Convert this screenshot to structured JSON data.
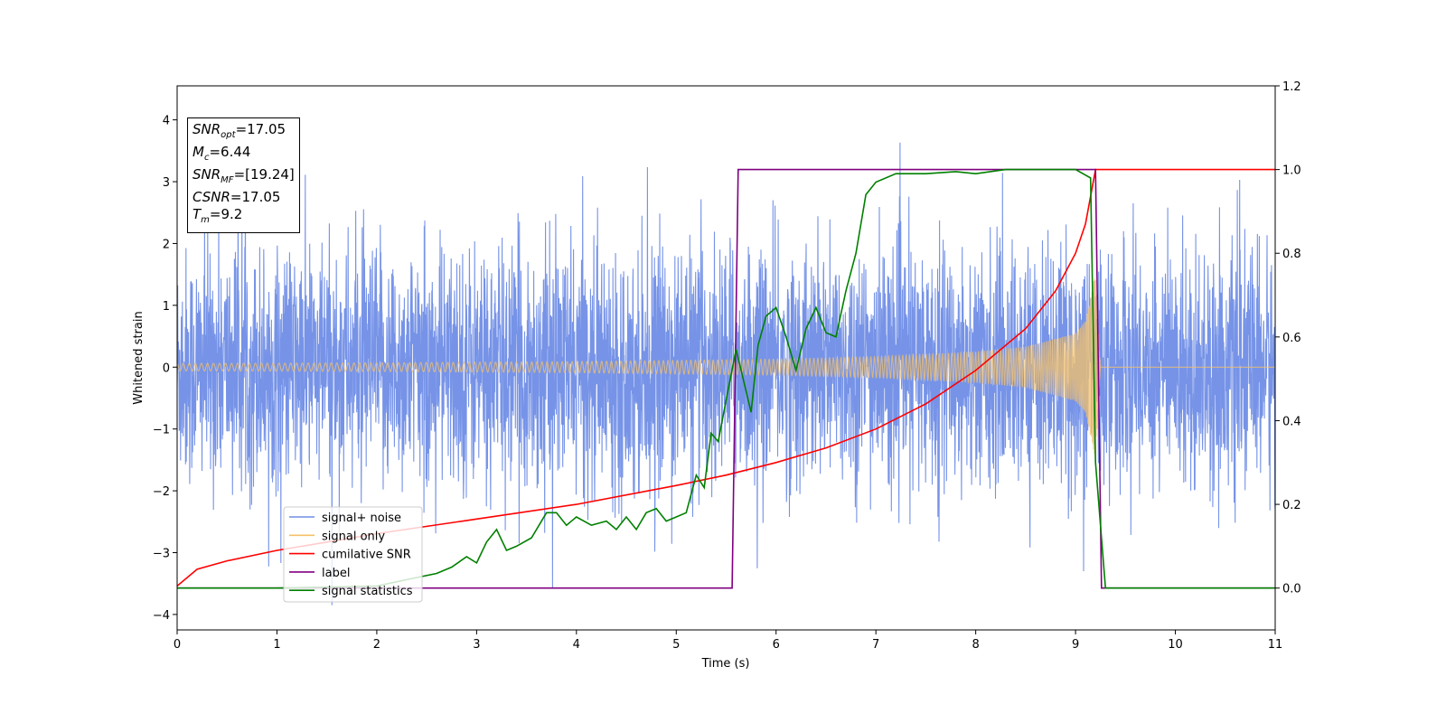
{
  "chart_data": {
    "type": "line",
    "xlabel": "Time (s)",
    "ylabel": "Whitened strain",
    "xlim": [
      0,
      11
    ],
    "ylim_left": [
      -4.25,
      4.55
    ],
    "ylim_right": [
      -0.1,
      1.2
    ],
    "xticks": [
      "0",
      "1",
      "2",
      "3",
      "4",
      "5",
      "6",
      "7",
      "8",
      "9",
      "10",
      "11"
    ],
    "yticks_left": [
      "−4",
      "−3",
      "−2",
      "−1",
      "0",
      "1",
      "2",
      "3",
      "4"
    ],
    "yticks_right": [
      "0.0",
      "0.2",
      "0.4",
      "0.6",
      "0.8",
      "1.0",
      "1.2"
    ],
    "legend_position": "lower-left",
    "legend": [
      {
        "label": "signal+ noise",
        "color": "#6f8de6"
      },
      {
        "label": "signal only",
        "color": "#f5c16a"
      },
      {
        "label": "cumilative SNR",
        "color": "#ff0000"
      },
      {
        "label": "label",
        "color": "#800080"
      },
      {
        "label": "signal statistics",
        "color": "#008000"
      }
    ],
    "series": [
      {
        "name": "signal+ noise",
        "axis": "left",
        "color": "#6f8de6",
        "description_values": {
          "x_range": [
            0,
            11
          ],
          "amplitude_typical": [
            -2.5,
            2.5
          ],
          "max": 4.15,
          "min": -3.85
        }
      },
      {
        "name": "signal only",
        "axis": "left",
        "color": "#f5c16a",
        "envelope": {
          "x": [
            0,
            2,
            4,
            6,
            7,
            8,
            8.5,
            9,
            9.1,
            9.2,
            9.25
          ],
          "amplitude": [
            0.06,
            0.07,
            0.09,
            0.13,
            0.17,
            0.25,
            0.33,
            0.55,
            0.75,
            1.5,
            0
          ]
        }
      },
      {
        "name": "cumilative SNR",
        "axis": "right",
        "color": "#ff0000",
        "x": [
          0,
          0.2,
          0.5,
          1,
          1.5,
          2,
          3,
          4,
          5,
          5.5,
          6,
          6.5,
          7,
          7.5,
          8,
          8.5,
          8.8,
          9.0,
          9.1,
          9.2,
          11
        ],
        "values": [
          0.005,
          0.045,
          0.065,
          0.09,
          0.11,
          0.13,
          0.165,
          0.2,
          0.245,
          0.27,
          0.3,
          0.335,
          0.38,
          0.44,
          0.52,
          0.62,
          0.71,
          0.8,
          0.87,
          1.0,
          1.0
        ]
      },
      {
        "name": "label",
        "axis": "right",
        "color": "#800080",
        "x": [
          0,
          5.56,
          5.62,
          9.2,
          9.26,
          11
        ],
        "values": [
          0,
          0,
          1,
          1,
          0,
          0
        ]
      },
      {
        "name": "signal statistics",
        "axis": "right",
        "color": "#008000",
        "x": [
          0,
          1,
          2,
          2.3,
          2.6,
          2.75,
          2.9,
          3.0,
          3.1,
          3.2,
          3.3,
          3.4,
          3.55,
          3.7,
          3.8,
          3.9,
          4.0,
          4.15,
          4.3,
          4.4,
          4.5,
          4.6,
          4.7,
          4.8,
          4.9,
          5.0,
          5.1,
          5.2,
          5.28,
          5.35,
          5.42,
          5.5,
          5.6,
          5.7,
          5.75,
          5.82,
          5.9,
          6.0,
          6.1,
          6.2,
          6.3,
          6.4,
          6.5,
          6.6,
          6.7,
          6.8,
          6.9,
          7.0,
          7.2,
          7.5,
          7.8,
          8.0,
          8.3,
          8.6,
          9.0,
          9.15,
          9.2,
          9.3,
          9.4,
          11
        ],
        "values": [
          0,
          0,
          0.005,
          0.02,
          0.035,
          0.05,
          0.075,
          0.06,
          0.11,
          0.14,
          0.09,
          0.1,
          0.12,
          0.18,
          0.18,
          0.15,
          0.17,
          0.15,
          0.16,
          0.14,
          0.17,
          0.14,
          0.18,
          0.19,
          0.16,
          0.17,
          0.18,
          0.27,
          0.24,
          0.37,
          0.35,
          0.45,
          0.57,
          0.47,
          0.42,
          0.58,
          0.65,
          0.67,
          0.6,
          0.52,
          0.62,
          0.67,
          0.61,
          0.6,
          0.71,
          0.8,
          0.94,
          0.97,
          0.99,
          0.99,
          0.995,
          0.99,
          1.0,
          1.0,
          1.0,
          0.98,
          0.3,
          0.0,
          0.0,
          0.0
        ]
      }
    ]
  },
  "info_box": {
    "snr_opt_sym": "SNR",
    "snr_opt_sub": "opt",
    "snr_opt_val": "=17.05",
    "mc_sym": "M",
    "mc_sub": "c",
    "mc_val": "=6.44",
    "snr_mf_sym": "SNR",
    "snr_mf_sub": "MF",
    "snr_mf_val": "=[19.24]",
    "csnr_sym": "CSNR",
    "csnr_val": "=17.05",
    "tm_sym": "T",
    "tm_sub": "m",
    "tm_val": "=9.2"
  }
}
